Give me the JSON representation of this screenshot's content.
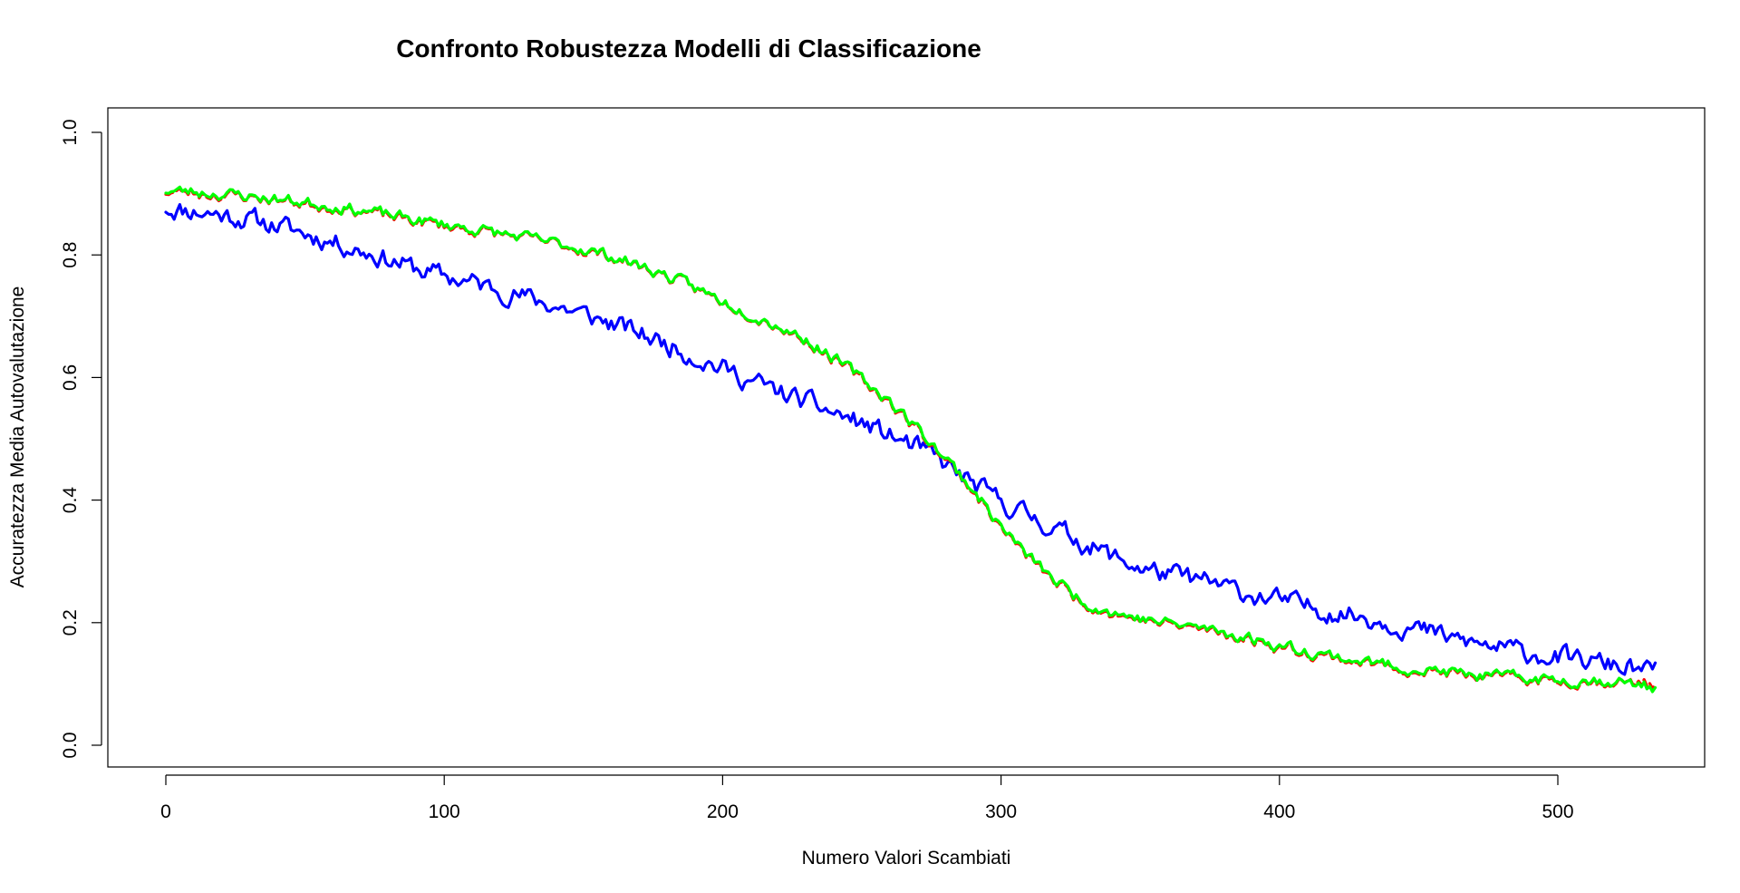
{
  "chart_data": {
    "type": "line",
    "title": "Confronto Robustezza Modelli di Classificazione",
    "xlabel": "Numero Valori Scambiati",
    "ylabel": "Accuratezza Media Autovalutazione",
    "xlim": [
      0,
      535
    ],
    "ylim": [
      0,
      1
    ],
    "xticks": [
      "0",
      "100",
      "200",
      "300",
      "400",
      "500"
    ],
    "yticks": [
      "0.0",
      "0.2",
      "0.4",
      "0.6",
      "0.8",
      "1.0"
    ],
    "grid": false,
    "legend": "none",
    "series": [
      {
        "color": "#0000FF",
        "dash": "solid",
        "x": [
          0,
          10,
          20,
          30,
          40,
          50,
          60,
          70,
          80,
          90,
          100,
          110,
          120,
          130,
          140,
          150,
          160,
          170,
          180,
          190,
          200,
          210,
          220,
          230,
          240,
          250,
          260,
          270,
          280,
          290,
          300,
          310,
          320,
          330,
          340,
          350,
          360,
          370,
          380,
          390,
          400,
          410,
          420,
          430,
          440,
          450,
          460,
          470,
          480,
          490,
          500,
          510,
          520,
          535
        ],
        "y": [
          0.877,
          0.872,
          0.866,
          0.858,
          0.848,
          0.835,
          0.822,
          0.808,
          0.793,
          0.777,
          0.765,
          0.755,
          0.743,
          0.73,
          0.717,
          0.703,
          0.688,
          0.672,
          0.655,
          0.635,
          0.615,
          0.595,
          0.576,
          0.56,
          0.542,
          0.525,
          0.505,
          0.485,
          0.458,
          0.425,
          0.397,
          0.375,
          0.352,
          0.33,
          0.308,
          0.29,
          0.278,
          0.27,
          0.258,
          0.246,
          0.236,
          0.226,
          0.218,
          0.21,
          0.2,
          0.188,
          0.176,
          0.166,
          0.158,
          0.15,
          0.143,
          0.137,
          0.131,
          0.118
        ]
      },
      {
        "color": "#FF0000",
        "dash": "dashed",
        "x": [
          0,
          10,
          20,
          30,
          40,
          50,
          60,
          70,
          80,
          90,
          100,
          110,
          120,
          130,
          140,
          150,
          160,
          170,
          180,
          190,
          200,
          210,
          220,
          230,
          240,
          250,
          260,
          270,
          280,
          290,
          300,
          310,
          320,
          330,
          340,
          350,
          360,
          370,
          380,
          390,
          400,
          410,
          420,
          430,
          440,
          450,
          460,
          470,
          480,
          490,
          500,
          510,
          520,
          535
        ],
        "y": [
          0.903,
          0.901,
          0.898,
          0.895,
          0.89,
          0.884,
          0.878,
          0.872,
          0.863,
          0.855,
          0.848,
          0.841,
          0.834,
          0.826,
          0.818,
          0.808,
          0.797,
          0.782,
          0.765,
          0.745,
          0.724,
          0.704,
          0.684,
          0.66,
          0.63,
          0.596,
          0.56,
          0.515,
          0.468,
          0.415,
          0.355,
          0.305,
          0.265,
          0.232,
          0.215,
          0.205,
          0.197,
          0.191,
          0.182,
          0.172,
          0.161,
          0.152,
          0.143,
          0.135,
          0.128,
          0.122,
          0.117,
          0.112,
          0.109,
          0.107,
          0.105,
          0.104,
          0.103,
          0.1
        ]
      },
      {
        "color": "#00FF00",
        "dash": "solid",
        "x": [
          0,
          10,
          20,
          30,
          40,
          50,
          60,
          70,
          80,
          90,
          100,
          110,
          120,
          130,
          140,
          150,
          160,
          170,
          180,
          190,
          200,
          210,
          220,
          230,
          240,
          250,
          260,
          270,
          280,
          290,
          300,
          310,
          320,
          330,
          340,
          350,
          360,
          370,
          380,
          390,
          400,
          410,
          420,
          430,
          440,
          450,
          460,
          470,
          480,
          490,
          500,
          510,
          520,
          535
        ],
        "y": [
          0.905,
          0.903,
          0.9,
          0.896,
          0.891,
          0.886,
          0.88,
          0.873,
          0.865,
          0.857,
          0.85,
          0.843,
          0.835,
          0.827,
          0.819,
          0.81,
          0.798,
          0.783,
          0.766,
          0.746,
          0.725,
          0.705,
          0.685,
          0.662,
          0.632,
          0.598,
          0.562,
          0.517,
          0.47,
          0.417,
          0.357,
          0.307,
          0.267,
          0.234,
          0.217,
          0.207,
          0.199,
          0.193,
          0.184,
          0.174,
          0.163,
          0.154,
          0.145,
          0.137,
          0.13,
          0.124,
          0.119,
          0.114,
          0.111,
          0.109,
          0.107,
          0.106,
          0.105,
          0.094
        ]
      }
    ]
  }
}
